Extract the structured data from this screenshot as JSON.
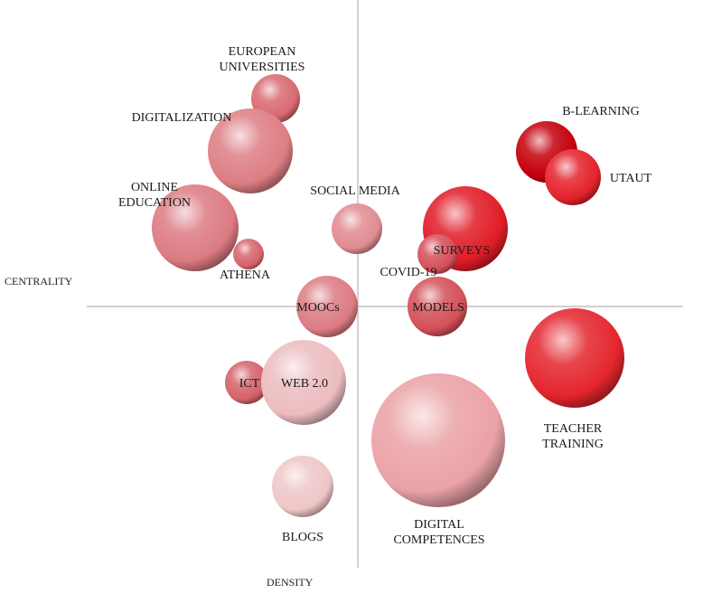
{
  "axes": {
    "y_label": "CENTRALITY",
    "x_label": "DENSITY"
  },
  "themes": [
    {
      "name": "EUROPEAN UNIVERSITIES",
      "lines": [
        "EUROPEAN",
        "UNIVERSITIES"
      ],
      "color": "#d86a72"
    },
    {
      "name": "DIGITALIZATION",
      "lines": [
        "DIGITALIZATION"
      ],
      "color": "#dd7e84"
    },
    {
      "name": "ONLINE EDUCATION",
      "lines": [
        "ONLINE",
        "EDUCATION"
      ],
      "color": "#dc7b82"
    },
    {
      "name": "ATHENA",
      "lines": [
        "ATHENA"
      ],
      "color": "#d7646c"
    },
    {
      "name": "SOCIAL MEDIA",
      "lines": [
        "SOCIAL MEDIA"
      ],
      "color": "#e08c92"
    },
    {
      "name": "SURVEYS",
      "lines": [
        "SURVEYS"
      ],
      "color": "#e01c26"
    },
    {
      "name": "COVID-19",
      "lines": [
        "COVID-19"
      ],
      "color": "#d5505a"
    },
    {
      "name": "B-LEARNING",
      "lines": [
        "B-LEARNING"
      ],
      "color": "#c4000c"
    },
    {
      "name": "UTAUT",
      "lines": [
        "UTAUT"
      ],
      "color": "#e4222c"
    },
    {
      "name": "MOOCs",
      "lines": [
        "MOOCs"
      ],
      "color": "#dc7b82"
    },
    {
      "name": "MODELS",
      "lines": [
        "MODELS"
      ],
      "color": "#d45058"
    },
    {
      "name": "TEACHER TRAINING",
      "lines": [
        "TEACHER",
        "TRAINING"
      ],
      "color": "#e4252e"
    },
    {
      "name": "ICT",
      "lines": [
        "ICT"
      ],
      "color": "#d5626a"
    },
    {
      "name": "WEB 2.0",
      "lines": [
        "WEB 2.0"
      ],
      "color": "#ecbcbf"
    },
    {
      "name": "DIGITAL COMPETENCES",
      "lines": [
        "DIGITAL",
        "COMPETENCES"
      ],
      "color": "#eaa2a6"
    },
    {
      "name": "BLOGS",
      "lines": [
        "BLOGS"
      ],
      "color": "#efc6c8"
    }
  ]
}
